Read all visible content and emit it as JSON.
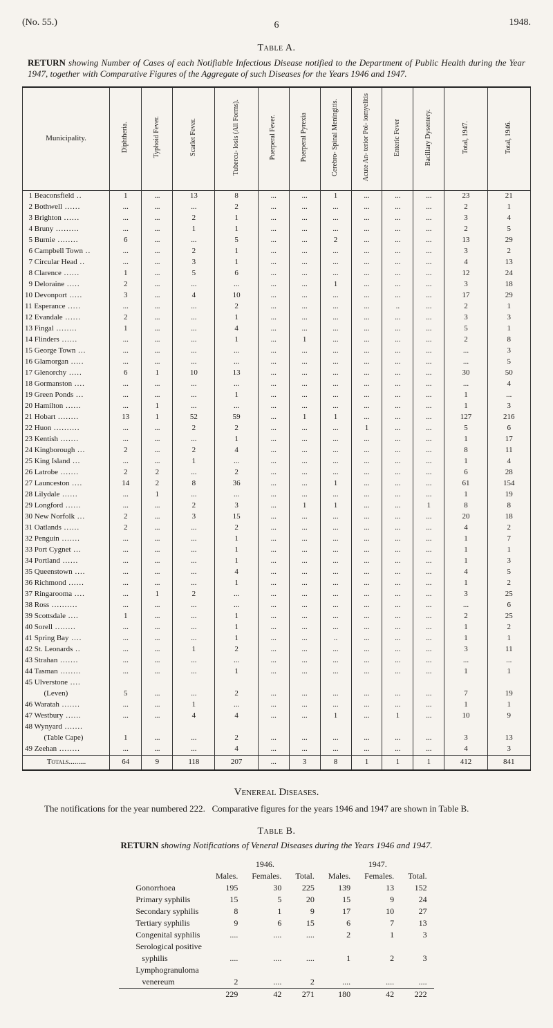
{
  "header": {
    "left": "(No. 55.)",
    "right": "1948.",
    "page": "6"
  },
  "tableA": {
    "label": "Table A.",
    "title_lead": "RETURN",
    "title_rest": " showing Number of Cases of each Notifiable Infectious Disease notified to the Department of Public Health during the Year 1947, together with Comparative Figures of the Aggregate of such Diseases for the Years 1946 and 1947.",
    "first_col": "Municipality.",
    "columns": [
      "Diphtheria.",
      "Typhoid Fever.",
      "Scarlet Fever.",
      "Tubercu- losis (All Forms).",
      "Puerperal Fever.",
      "Puerperal Pyrexia",
      "Cerebro- Spinal Meningitis.",
      "Acute An- terior Pol- iomyelitis",
      "Enteric Fever",
      "Bacillary Dysentery.",
      "Total, 1947.",
      "Total, 1946."
    ],
    "rows": [
      {
        "n": "1",
        "name": "Beaconsfield",
        "c": [
          "1",
          "...",
          "13",
          "8",
          "...",
          "...",
          "1",
          "...",
          "...",
          "...",
          "23",
          "21"
        ]
      },
      {
        "n": "2",
        "name": "Bothwell",
        "c": [
          "...",
          "...",
          "...",
          "2",
          "...",
          "...",
          "...",
          "...",
          "...",
          "...",
          "2",
          "1"
        ]
      },
      {
        "n": "3",
        "name": "Brighton",
        "c": [
          "...",
          "...",
          "2",
          "1",
          "...",
          "...",
          "...",
          "...",
          "...",
          "...",
          "3",
          "4"
        ]
      },
      {
        "n": "4",
        "name": "Bruny",
        "c": [
          "...",
          "...",
          "1",
          "1",
          "...",
          "...",
          "...",
          "...",
          "...",
          "...",
          "2",
          "5"
        ]
      },
      {
        "n": "5",
        "name": "Burnie",
        "c": [
          "6",
          "...",
          "...",
          "5",
          "...",
          "...",
          "2",
          "...",
          "...",
          "...",
          "13",
          "29"
        ]
      },
      {
        "n": "6",
        "name": "Campbell Town",
        "c": [
          "...",
          "...",
          "2",
          "1",
          "...",
          "...",
          "...",
          "...",
          "...",
          "...",
          "3",
          "2"
        ]
      },
      {
        "n": "7",
        "name": "Circular Head",
        "c": [
          "...",
          "...",
          "3",
          "1",
          "...",
          "...",
          "...",
          "...",
          "...",
          "...",
          "4",
          "13"
        ]
      },
      {
        "n": "8",
        "name": "Clarence",
        "c": [
          "1",
          "...",
          "5",
          "6",
          "...",
          "...",
          "...",
          "...",
          "...",
          "...",
          "12",
          "24"
        ]
      },
      {
        "n": "9",
        "name": "Deloraine",
        "c": [
          "2",
          "...",
          "...",
          "...",
          "...",
          "...",
          "1",
          "...",
          "...",
          "...",
          "3",
          "18"
        ]
      },
      {
        "n": "10",
        "name": "Devonport",
        "c": [
          "3",
          "...",
          "4",
          "10",
          "...",
          "...",
          "...",
          "...",
          "...",
          "...",
          "17",
          "29"
        ]
      },
      {
        "n": "11",
        "name": "Esperance",
        "c": [
          "...",
          "...",
          "...",
          "2",
          "...",
          "...",
          "...",
          "...",
          "..",
          "...",
          "2",
          "1"
        ]
      },
      {
        "n": "12",
        "name": "Evandale",
        "c": [
          "2",
          "...",
          "...",
          "1",
          "...",
          "...",
          "...",
          "...",
          "...",
          "...",
          "3",
          "3"
        ]
      },
      {
        "n": "13",
        "name": "Fingal",
        "c": [
          "1",
          "...",
          "...",
          "4",
          "...",
          "...",
          "...",
          "...",
          "...",
          "...",
          "5",
          "1"
        ]
      },
      {
        "n": "14",
        "name": "Flinders",
        "c": [
          "...",
          "...",
          "...",
          "1",
          "...",
          "1",
          "...",
          "...",
          "...",
          "...",
          "2",
          "8"
        ]
      },
      {
        "n": "15",
        "name": "George Town",
        "c": [
          "...",
          "...",
          "...",
          "...",
          "...",
          "...",
          "...",
          "...",
          "...",
          "...",
          "...",
          "3"
        ]
      },
      {
        "n": "16",
        "name": "Glamorgan",
        "c": [
          "...",
          "...",
          "...",
          "...",
          "...",
          "...",
          "...",
          "...",
          "...",
          "...",
          "...",
          "5"
        ]
      },
      {
        "n": "17",
        "name": "Glenorchy",
        "c": [
          "6",
          "1",
          "10",
          "13",
          "...",
          "...",
          "...",
          "...",
          "...",
          "...",
          "30",
          "50"
        ]
      },
      {
        "n": "18",
        "name": "Gormanston",
        "c": [
          "...",
          "...",
          "...",
          "...",
          "...",
          "...",
          "...",
          "...",
          "...",
          "...",
          "...",
          "4"
        ]
      },
      {
        "n": "19",
        "name": "Green Ponds",
        "c": [
          "...",
          "...",
          "...",
          "1",
          "...",
          "...",
          "...",
          "...",
          "...",
          "...",
          "1",
          "..."
        ]
      },
      {
        "n": "20",
        "name": "Hamilton",
        "c": [
          "...",
          "1",
          "...",
          "...",
          "...",
          "...",
          "...",
          "...",
          "...",
          "...",
          "1",
          "3"
        ]
      },
      {
        "n": "21",
        "name": "Hobart",
        "c": [
          "13",
          "1",
          "52",
          "59",
          "...",
          "1",
          "1",
          "...",
          "...",
          "...",
          "127",
          "216"
        ]
      },
      {
        "n": "22",
        "name": "Huon",
        "c": [
          "...",
          "...",
          "2",
          "2",
          "...",
          "...",
          "...",
          "1",
          "...",
          "...",
          "5",
          "6"
        ]
      },
      {
        "n": "23",
        "name": "Kentish",
        "c": [
          "...",
          "...",
          "...",
          "1",
          "...",
          "...",
          "...",
          "...",
          "...",
          "...",
          "1",
          "17"
        ]
      },
      {
        "n": "24",
        "name": "Kingborough",
        "c": [
          "2",
          "...",
          "2",
          "4",
          "...",
          "...",
          "...",
          "...",
          "...",
          "...",
          "8",
          "11"
        ]
      },
      {
        "n": "25",
        "name": "King Island",
        "c": [
          "...",
          "...",
          "1",
          "...",
          "...",
          "...",
          "...",
          "...",
          "...",
          "...",
          "1",
          "4"
        ]
      },
      {
        "n": "26",
        "name": "Latrobe",
        "c": [
          "2",
          "2",
          "...",
          "2",
          "...",
          "...",
          "...",
          "...",
          "...",
          "...",
          "6",
          "28"
        ]
      },
      {
        "n": "27",
        "name": "Launceston",
        "c": [
          "14",
          "2",
          "8",
          "36",
          "...",
          "...",
          "1",
          "...",
          "...",
          "...",
          "61",
          "154"
        ]
      },
      {
        "n": "28",
        "name": "Lilydale",
        "c": [
          "...",
          "1",
          "...",
          "...",
          "...",
          "...",
          "...",
          "...",
          "...",
          "...",
          "1",
          "19"
        ]
      },
      {
        "n": "29",
        "name": "Longford",
        "c": [
          "...",
          "...",
          "2",
          "3",
          "...",
          "1",
          "1",
          "...",
          "...",
          "1",
          "8",
          "8"
        ]
      },
      {
        "n": "30",
        "name": "New Norfolk",
        "c": [
          "2",
          "...",
          "3",
          "15",
          "...",
          "...",
          "...",
          "...",
          "...",
          "...",
          "20",
          "18"
        ]
      },
      {
        "n": "31",
        "name": "Oatlands",
        "c": [
          "2",
          "...",
          "...",
          "2",
          "...",
          "...",
          "...",
          "...",
          "...",
          "...",
          "4",
          "2"
        ]
      },
      {
        "n": "32",
        "name": "Penguin",
        "c": [
          "...",
          "...",
          "...",
          "1",
          "...",
          "...",
          "...",
          "...",
          "...",
          "...",
          "1",
          "7"
        ]
      },
      {
        "n": "33",
        "name": "Port Cygnet",
        "c": [
          "...",
          "...",
          "...",
          "1",
          "...",
          "...",
          "...",
          "...",
          "...",
          "...",
          "1",
          "1"
        ]
      },
      {
        "n": "34",
        "name": "Portland",
        "c": [
          "...",
          "...",
          "...",
          "1",
          "...",
          "...",
          "...",
          "...",
          "...",
          "...",
          "1",
          "3"
        ]
      },
      {
        "n": "35",
        "name": "Queenstown",
        "c": [
          "...",
          "...",
          "...",
          "4",
          "...",
          "...",
          "...",
          "...",
          "...",
          "...",
          "4",
          "5"
        ]
      },
      {
        "n": "36",
        "name": "Richmond",
        "c": [
          "...",
          "...",
          "...",
          "1",
          "...",
          "...",
          "...",
          "...",
          "...",
          "...",
          "1",
          "2"
        ]
      },
      {
        "n": "37",
        "name": "Ringarooma",
        "c": [
          "...",
          "1",
          "2",
          "...",
          "...",
          "...",
          "...",
          "...",
          "...",
          "...",
          "3",
          "25"
        ]
      },
      {
        "n": "38",
        "name": "Ross",
        "c": [
          "...",
          "...",
          "...",
          "...",
          "...",
          "...",
          "...",
          "...",
          "...",
          "...",
          "...",
          "6"
        ]
      },
      {
        "n": "39",
        "name": "Scottsdale",
        "c": [
          "1",
          "...",
          "...",
          "1",
          "...",
          "...",
          "...",
          "...",
          "...",
          "...",
          "2",
          "25"
        ]
      },
      {
        "n": "40",
        "name": "Sorell",
        "c": [
          "...",
          "...",
          "...",
          "1",
          "...",
          "...",
          "...",
          "...",
          "...",
          "...",
          "1",
          "2"
        ]
      },
      {
        "n": "41",
        "name": "Spring Bay",
        "c": [
          "...",
          "...",
          "...",
          "1",
          "...",
          "...",
          "..",
          "...",
          "...",
          "...",
          "1",
          "1"
        ]
      },
      {
        "n": "42",
        "name": "St. Leonards",
        "c": [
          "...",
          "...",
          "1",
          "2",
          "...",
          "...",
          "...",
          "...",
          "...",
          "...",
          "3",
          "11"
        ]
      },
      {
        "n": "43",
        "name": "Strahan",
        "c": [
          "...",
          "...",
          "...",
          "...",
          "...",
          "...",
          "...",
          "...",
          "...",
          "...",
          "...",
          "..."
        ]
      },
      {
        "n": "44",
        "name": "Tasman",
        "c": [
          "...",
          "...",
          "...",
          "1",
          "...",
          "...",
          "...",
          "...",
          "...",
          "...",
          "1",
          "1"
        ]
      },
      {
        "n": "45",
        "name": "Ulverstone",
        "c": [
          "",
          "",
          "",
          "",
          "",
          "",
          "",
          "",
          "",
          "",
          "",
          ""
        ]
      },
      {
        "n": "",
        "name": "     (Leven)",
        "c": [
          "5",
          "...",
          "...",
          "2",
          "...",
          "...",
          "...",
          "...",
          "...",
          "...",
          "7",
          "19"
        ]
      },
      {
        "n": "46",
        "name": "Waratah",
        "c": [
          "...",
          "...",
          "1",
          "...",
          "...",
          "...",
          "...",
          "...",
          "...",
          "...",
          "1",
          "1"
        ]
      },
      {
        "n": "47",
        "name": "Westbury",
        "c": [
          "...",
          "...",
          "4",
          "4",
          "...",
          "...",
          "1",
          "...",
          "1",
          "...",
          "10",
          "9"
        ]
      },
      {
        "n": "48",
        "name": "Wynyard",
        "c": [
          "",
          "",
          "",
          "",
          "",
          "",
          "",
          "",
          "",
          "",
          "",
          ""
        ]
      },
      {
        "n": "",
        "name": "     (Table Cape)",
        "c": [
          "1",
          "...",
          "...",
          "2",
          "...",
          "...",
          "...",
          "...",
          "...",
          "...",
          "3",
          "13"
        ]
      },
      {
        "n": "49",
        "name": "Zeehan",
        "c": [
          "...",
          "...",
          "...",
          "4",
          "...",
          "...",
          "...",
          "...",
          "...",
          "...",
          "4",
          "3"
        ]
      }
    ],
    "totals": {
      "label": "Totals",
      "c": [
        "64",
        "9",
        "118",
        "207",
        "...",
        "3",
        "8",
        "1",
        "1",
        "1",
        "412",
        "841"
      ]
    }
  },
  "vd": {
    "heading": "Venereal Diseases.",
    "para": "The notifications for the year numbered 222.   Comparative figures for the years 1946 and 1947 are shown in Table B.",
    "tableB_label": "Table B.",
    "tableB_title_lead": "RETURN",
    "tableB_title_rest": " showing Notifications of Veneral Diseases during the Years 1946 and 1947.",
    "year_1946": "1946.",
    "year_1947": "1947.",
    "col_m": "Males.",
    "col_f": "Females.",
    "col_t": "Total.",
    "rows": [
      {
        "name": "Gonorrhoea",
        "v": [
          "195",
          "30",
          "225",
          "139",
          "13",
          "152"
        ]
      },
      {
        "name": "Primary syphilis",
        "v": [
          "15",
          "5",
          "20",
          "15",
          "9",
          "24"
        ]
      },
      {
        "name": "Secondary syphilis",
        "v": [
          "8",
          "1",
          "9",
          "17",
          "10",
          "27"
        ]
      },
      {
        "name": "Tertiary syphilis",
        "v": [
          "9",
          "6",
          "15",
          "6",
          "7",
          "13"
        ]
      },
      {
        "name": "Congenital syphilis",
        "v": [
          "....",
          "....",
          "....",
          "2",
          "1",
          "3"
        ]
      },
      {
        "name": "Serological positive",
        "v": [
          "",
          "",
          "",
          "",
          "",
          ""
        ]
      },
      {
        "name": "   syphilis",
        "v": [
          "....",
          "....",
          "....",
          "1",
          "2",
          "3"
        ]
      },
      {
        "name": "Lymphogranuloma",
        "v": [
          "",
          "",
          "",
          "",
          "",
          ""
        ]
      },
      {
        "name": "   venereum",
        "v": [
          "2",
          "....",
          "2",
          "....",
          "....",
          "...."
        ]
      }
    ],
    "totals": [
      "229",
      "42",
      "271",
      "180",
      "42",
      "222"
    ]
  }
}
